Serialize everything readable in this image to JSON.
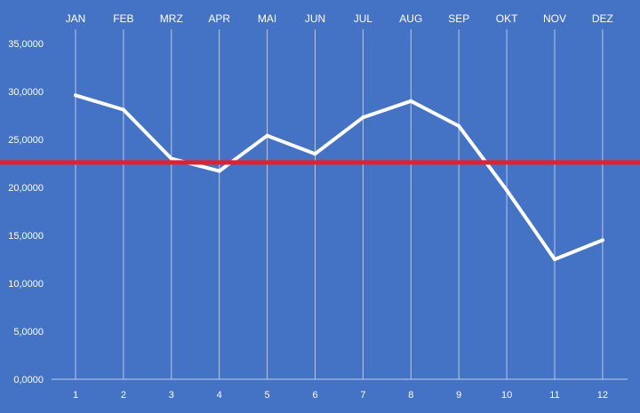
{
  "colors": {
    "background": "#4472C4",
    "line": "#FFFFFF",
    "reference_line": "#E0222F",
    "text": "#FFFFFF",
    "month_gridline": "#C9D8F2",
    "axis": "#BFD0EE"
  },
  "chart_data": {
    "type": "line",
    "title": "",
    "xlabel": "",
    "ylabel": "",
    "x": [
      1,
      2,
      3,
      4,
      5,
      6,
      7,
      8,
      9,
      10,
      11,
      12
    ],
    "month_labels": [
      "JAN",
      "FEB",
      "MRZ",
      "APR",
      "MAI",
      "JUN",
      "JUL",
      "AUG",
      "SEP",
      "OKT",
      "NOV",
      "DEZ"
    ],
    "series": [
      {
        "values": [
          29.6,
          28.1,
          23.0,
          21.7,
          25.4,
          23.5,
          27.3,
          29.0,
          26.4,
          19.7,
          12.5,
          14.5
        ]
      }
    ],
    "reference_line": {
      "value": 22.6
    },
    "yticks": [
      "0,0000",
      "5,0000",
      "10,0000",
      "15,0000",
      "20,0000",
      "25,0000",
      "30,0000",
      "35,0000"
    ],
    "ylim": [
      0,
      35
    ],
    "grid": "vertical lines at each month",
    "legend": "none"
  }
}
